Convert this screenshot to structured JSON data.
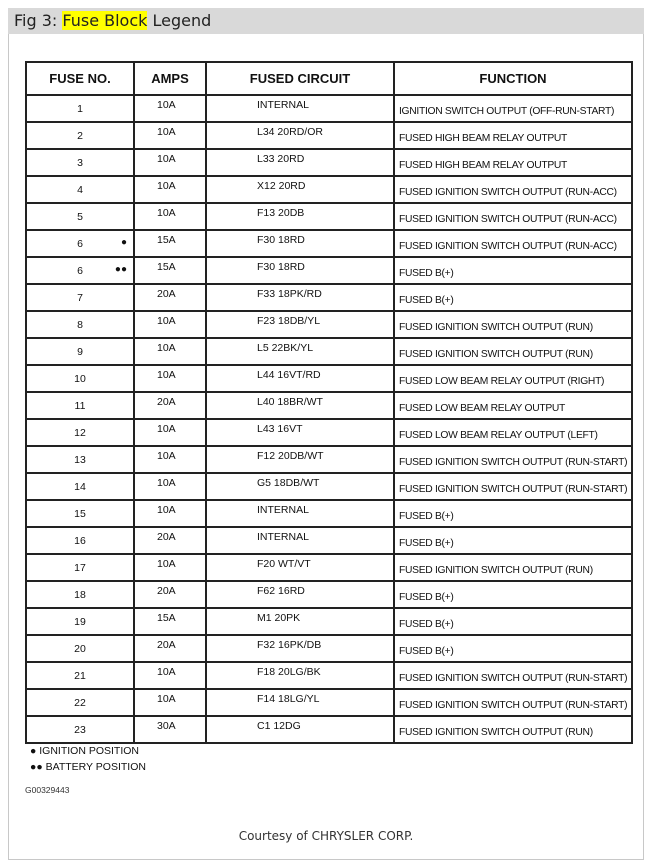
{
  "title": {
    "prefix": "Fig 3: ",
    "highlight": "Fuse Block",
    "suffix": " Legend",
    "highlight_color": "#ffff00"
  },
  "table": {
    "headers": [
      "FUSE NO.",
      "AMPS",
      "FUSED CIRCUIT",
      "FUNCTION"
    ],
    "rows": [
      {
        "no": "1",
        "marker": "",
        "amps": "10A",
        "circuit": "INTERNAL",
        "function": "IGNITION SWITCH OUTPUT (OFF-RUN-START)"
      },
      {
        "no": "2",
        "marker": "",
        "amps": "10A",
        "circuit": "L34 20RD/OR",
        "function": "FUSED HIGH BEAM RELAY OUTPUT"
      },
      {
        "no": "3",
        "marker": "",
        "amps": "10A",
        "circuit": "L33 20RD",
        "function": "FUSED HIGH BEAM RELAY OUTPUT"
      },
      {
        "no": "4",
        "marker": "",
        "amps": "10A",
        "circuit": "X12 20RD",
        "function": "FUSED IGNITION SWITCH OUTPUT (RUN-ACC)"
      },
      {
        "no": "5",
        "marker": "",
        "amps": "10A",
        "circuit": "F13 20DB",
        "function": "FUSED IGNITION SWITCH OUTPUT (RUN-ACC)"
      },
      {
        "no": "6",
        "marker": "●",
        "amps": "15A",
        "circuit": "F30 18RD",
        "function": "FUSED IGNITION SWITCH OUTPUT (RUN-ACC)"
      },
      {
        "no": "6",
        "marker": "●●",
        "amps": "15A",
        "circuit": "F30 18RD",
        "function": "FUSED B(+)"
      },
      {
        "no": "7",
        "marker": "",
        "amps": "20A",
        "circuit": "F33 18PK/RD",
        "function": "FUSED B(+)"
      },
      {
        "no": "8",
        "marker": "",
        "amps": "10A",
        "circuit": "F23 18DB/YL",
        "function": "FUSED IGNITION SWITCH OUTPUT (RUN)"
      },
      {
        "no": "9",
        "marker": "",
        "amps": "10A",
        "circuit": "L5 22BK/YL",
        "function": "FUSED IGNITION SWITCH OUTPUT (RUN)"
      },
      {
        "no": "10",
        "marker": "",
        "amps": "10A",
        "circuit": "L44 16VT/RD",
        "function": "FUSED LOW BEAM RELAY OUTPUT (RIGHT)"
      },
      {
        "no": "11",
        "marker": "",
        "amps": "20A",
        "circuit": "L40 18BR/WT",
        "function": "FUSED LOW BEAM RELAY OUTPUT"
      },
      {
        "no": "12",
        "marker": "",
        "amps": "10A",
        "circuit": "L43 16VT",
        "function": "FUSED LOW BEAM RELAY OUTPUT (LEFT)"
      },
      {
        "no": "13",
        "marker": "",
        "amps": "10A",
        "circuit": "F12 20DB/WT",
        "function": "FUSED IGNITION SWITCH OUTPUT (RUN-START)"
      },
      {
        "no": "14",
        "marker": "",
        "amps": "10A",
        "circuit": "G5 18DB/WT",
        "function": "FUSED IGNITION SWITCH OUTPUT (RUN-START)"
      },
      {
        "no": "15",
        "marker": "",
        "amps": "10A",
        "circuit": "INTERNAL",
        "function": "FUSED B(+)"
      },
      {
        "no": "16",
        "marker": "",
        "amps": "20A",
        "circuit": "INTERNAL",
        "function": "FUSED B(+)"
      },
      {
        "no": "17",
        "marker": "",
        "amps": "10A",
        "circuit": "F20 WT/VT",
        "function": "FUSED IGNITION SWITCH OUTPUT (RUN)"
      },
      {
        "no": "18",
        "marker": "",
        "amps": "20A",
        "circuit": "F62 16RD",
        "function": "FUSED B(+)"
      },
      {
        "no": "19",
        "marker": "",
        "amps": "15A",
        "circuit": "M1 20PK",
        "function": "FUSED B(+)"
      },
      {
        "no": "20",
        "marker": "",
        "amps": "20A",
        "circuit": "F32 16PK/DB",
        "function": "FUSED B(+)"
      },
      {
        "no": "21",
        "marker": "",
        "amps": "10A",
        "circuit": "F18 20LG/BK",
        "function": "FUSED IGNITION SWITCH OUTPUT (RUN-START)"
      },
      {
        "no": "22",
        "marker": "",
        "amps": "10A",
        "circuit": "F14 18LG/YL",
        "function": "FUSED IGNITION SWITCH OUTPUT (RUN-START)"
      },
      {
        "no": "23",
        "marker": "",
        "amps": "30A",
        "circuit": "C1 12DG",
        "function": "FUSED IGNITION SWITCH OUTPUT (RUN)"
      }
    ]
  },
  "legend": {
    "ignition": "● IGNITION POSITION",
    "battery": "●● BATTERY POSITION"
  },
  "figure_code": "G00329443",
  "courtesy": "Courtesy of CHRYSLER CORP."
}
